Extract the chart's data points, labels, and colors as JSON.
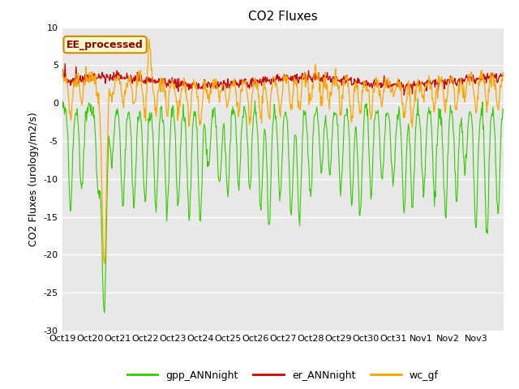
{
  "title": "CO2 Fluxes",
  "ylabel": "CO2 Fluxes (urology/m2/s)",
  "xlabel": "",
  "ylim": [
    -30,
    10
  ],
  "yticks": [
    -30,
    -25,
    -20,
    -15,
    -10,
    -5,
    0,
    5,
    10
  ],
  "xtick_labels": [
    "Oct 19",
    "Oct 20",
    "Oct 21",
    "Oct 22",
    "Oct 23",
    "Oct 24",
    "Oct 25",
    "Oct 26",
    "Oct 27",
    "Oct 28",
    "Oct 29",
    "Oct 30",
    "Oct 31",
    "Nov 1",
    "Nov 2",
    "Nov 3"
  ],
  "bg_color": "#e8e8e8",
  "fig_bg": "#ffffff",
  "line_colors": {
    "gpp": "#33cc00",
    "er": "#cc0000",
    "wc": "#ffa500"
  },
  "legend_label": "EE_processed",
  "legend_bg": "#ffffcc",
  "legend_edge": "#cc8800",
  "series_labels": [
    "gpp_ANNnight",
    "er_ANNnight",
    "wc_gf"
  ],
  "n_points": 800,
  "title_fontsize": 11,
  "label_fontsize": 9,
  "tick_fontsize": 8
}
